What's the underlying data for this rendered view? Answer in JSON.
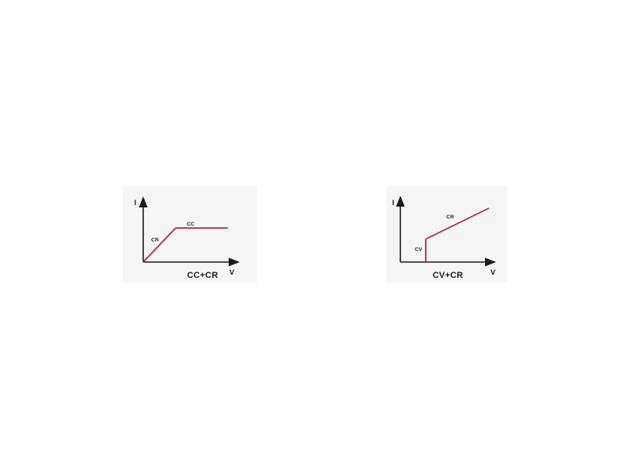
{
  "page": {
    "background_color": "#ffffff",
    "description": "Two I-V characteristic curve diagrams side by side"
  },
  "colors": {
    "line": "#ae2a4e",
    "axis": "#1c1c1c",
    "text": "#1c1c1c",
    "panel_background": "#f5f6f3"
  },
  "chart_data": [
    {
      "type": "line",
      "title": "CC+CR",
      "xlabel": "V",
      "ylabel": "I",
      "grid": false,
      "axis_ticks": "none",
      "x_range": [
        0,
        1
      ],
      "y_range": [
        0,
        1
      ],
      "series": [
        {
          "name": "CR",
          "points": [
            [
              0,
              0
            ],
            [
              0.336,
              0.551
            ]
          ]
        },
        {
          "name": "CC",
          "points": [
            [
              0.336,
              0.551
            ],
            [
              0.877,
              0.551
            ]
          ]
        }
      ]
    },
    {
      "type": "line",
      "title": "CV+CR",
      "xlabel": "V",
      "ylabel": "I",
      "grid": false,
      "axis_ticks": "none",
      "x_range": [
        0,
        1
      ],
      "y_range": [
        0,
        1
      ],
      "series": [
        {
          "name": "CV",
          "points": [
            [
              0.265,
              0
            ],
            [
              0.265,
              0.372
            ]
          ]
        },
        {
          "name": "CR",
          "points": [
            [
              0.265,
              0.372
            ],
            [
              0.925,
              0.872
            ]
          ]
        }
      ]
    }
  ]
}
